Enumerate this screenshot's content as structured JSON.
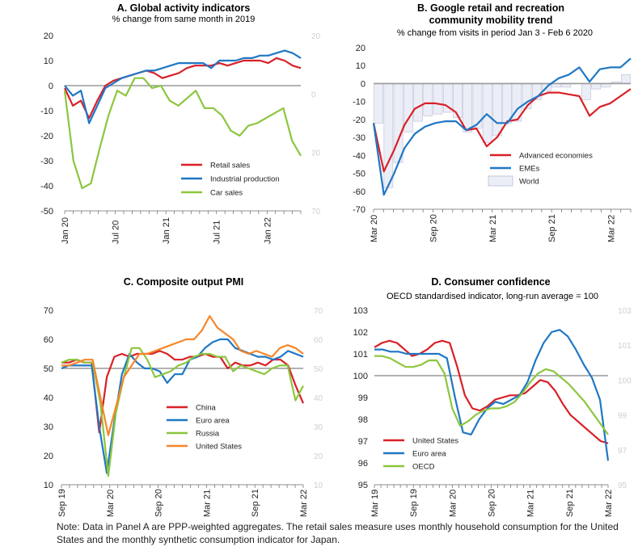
{
  "colors": {
    "red": "#d92027",
    "blue": "#1f77c4",
    "green": "#8cc63f",
    "orange": "#f6862a",
    "gray": "#999999",
    "bar": "#eceef7"
  },
  "note": "Note: Data in Panel A are PPP-weighted aggregates. The retail sales measure uses monthly household consumption for the United States and the monthly synthetic consumption indicator for Japan.",
  "chart_data": [
    {
      "id": "A",
      "type": "line",
      "title": "A. Global activity indicators",
      "subtitle": "% change from same month in 2019",
      "ylim": [
        -50,
        20
      ],
      "yticks": [
        20,
        10,
        0,
        -10,
        -20,
        -30,
        -40,
        -50
      ],
      "ghost_ticks": [
        "20",
        "0",
        "20",
        "70"
      ],
      "x_range": [
        0,
        28
      ],
      "date_labels": [
        {
          "label": "Jan 20",
          "x": 0
        },
        {
          "label": "Jul 20",
          "x": 6
        },
        {
          "label": "Jan 21",
          "x": 12
        },
        {
          "label": "Jul 21",
          "x": 18
        },
        {
          "label": "Jan 22",
          "x": 24
        }
      ],
      "zero_line": 0,
      "series": [
        {
          "name": "Retail sales",
          "color_key": "red",
          "values": [
            -1,
            -8,
            -6,
            -13,
            -6,
            0,
            2,
            3,
            4,
            5,
            6,
            5,
            3,
            4,
            5,
            7,
            8,
            8,
            8,
            9,
            8,
            9,
            10,
            10,
            10,
            9,
            11,
            10,
            8,
            7
          ]
        },
        {
          "name": "Industrial production",
          "color_key": "blue",
          "values": [
            0,
            -4,
            -2,
            -15,
            -8,
            -1,
            1,
            3,
            4,
            5,
            6,
            6,
            7,
            8,
            9,
            9,
            9,
            9,
            7,
            10,
            10,
            10,
            11,
            11,
            12,
            12,
            13,
            14,
            13,
            11
          ]
        },
        {
          "name": "Car sales",
          "color_key": "green",
          "values": [
            -2,
            -30,
            -41,
            -39,
            -25,
            -12,
            -2,
            -4,
            3,
            3,
            -1,
            0,
            -6,
            -8,
            -5,
            -2,
            -9,
            -9,
            -12,
            -18,
            -20,
            -16,
            -15,
            -13,
            -11,
            -9,
            -22,
            -28
          ]
        }
      ]
    },
    {
      "id": "B",
      "type": "line",
      "title": "B. Google retail and recreation community mobility trend",
      "title_lines": [
        "B. Google retail and recreation",
        "community mobility trend"
      ],
      "subtitle": "% change from visits in period Jan 3 - Feb 6 2020",
      "ylim": [
        -70,
        20
      ],
      "yticks": [
        20,
        10,
        0,
        -10,
        -20,
        -30,
        -40,
        -50,
        -60,
        -70
      ],
      "x_range": [
        0,
        26
      ],
      "date_labels": [
        {
          "label": "Mar 20",
          "x": 0
        },
        {
          "label": "Sep 20",
          "x": 6
        },
        {
          "label": "Mar 21",
          "x": 12
        },
        {
          "label": "Sep 21",
          "x": 18
        },
        {
          "label": "Mar 22",
          "x": 24
        }
      ],
      "zero_line": 0,
      "series": [
        {
          "name": "Advanced economies",
          "color_key": "red",
          "values": [
            -22,
            -49,
            -37,
            -23,
            -14,
            -11,
            -11,
            -12,
            -16,
            -26,
            -25,
            -35,
            -30,
            -21,
            -20,
            -12,
            -7,
            -5,
            -5,
            -6,
            -7,
            -18,
            -13,
            -11,
            -7,
            -3
          ]
        },
        {
          "name": "EMEs",
          "color_key": "blue",
          "values": [
            -22,
            -62,
            -50,
            -36,
            -28,
            -24,
            -22,
            -21,
            -21,
            -26,
            -23,
            -17,
            -22,
            -22,
            -14,
            -10,
            -7,
            -1,
            3,
            5,
            9,
            1,
            8,
            9,
            9,
            14
          ]
        },
        {
          "name": "World",
          "kind": "bar",
          "color_key": "bar",
          "values": [
            -22,
            -58,
            -44,
            -27,
            -21,
            -18,
            -17,
            -16,
            -19,
            -27,
            -25,
            -33,
            -29,
            -22,
            -21,
            -14,
            -9,
            -4,
            -2,
            -2,
            0,
            -9,
            -3,
            -2,
            1,
            5
          ]
        }
      ]
    },
    {
      "id": "C",
      "type": "line",
      "title": "C. Composite output PMI",
      "ylim": [
        10,
        70
      ],
      "yticks": [
        70,
        60,
        50,
        40,
        30,
        20,
        10
      ],
      "ghost_ticks": [
        "70",
        "60",
        "50",
        "40",
        "30",
        "20",
        "10"
      ],
      "x_range": [
        0,
        30
      ],
      "date_labels": [
        {
          "label": "Sep 19",
          "x": 0
        },
        {
          "label": "Mar 20",
          "x": 6
        },
        {
          "label": "Sep 20",
          "x": 12
        },
        {
          "label": "Mar 21",
          "x": 18
        },
        {
          "label": "Sep 21",
          "x": 24
        },
        {
          "label": "Mar 22",
          "x": 30
        }
      ],
      "zero_line": 50,
      "series": [
        {
          "name": "China",
          "color_key": "red",
          "values": [
            52,
            52,
            53,
            52,
            52,
            28,
            47,
            54,
            55,
            54,
            55,
            55,
            55,
            56,
            55,
            53,
            53,
            54,
            54,
            55,
            54,
            54,
            50,
            52,
            51,
            51,
            52,
            51,
            53,
            53,
            51,
            44,
            38
          ]
        },
        {
          "name": "Euro area",
          "color_key": "blue",
          "values": [
            50,
            51,
            51,
            51,
            51,
            30,
            14,
            32,
            48,
            55,
            52,
            50,
            50,
            49,
            45,
            48,
            48,
            53,
            54,
            57,
            59,
            60,
            60,
            57,
            56,
            55,
            54,
            54,
            53,
            54,
            56,
            55,
            54
          ]
        },
        {
          "name": "Russia",
          "color_key": "green",
          "values": [
            52,
            53,
            53,
            52,
            52,
            38,
            13,
            35,
            47,
            57,
            57,
            53,
            47,
            48,
            49,
            51,
            52,
            54,
            55,
            55,
            54,
            54,
            49,
            51,
            50,
            49,
            48,
            50,
            51,
            51,
            39,
            44
          ]
        },
        {
          "name": "United States",
          "color_key": "orange",
          "values": [
            51,
            51,
            52,
            53,
            53,
            40,
            27,
            37,
            47,
            51,
            55,
            55,
            56,
            57,
            58,
            59,
            60,
            60,
            63,
            68,
            64,
            62,
            60,
            56,
            55,
            56,
            55,
            54,
            57,
            58,
            57,
            55
          ]
        }
      ]
    },
    {
      "id": "D",
      "type": "line",
      "title": "D. Consumer confidence",
      "subtitle": "OECD standardised indicator, long-run average = 100",
      "ylim": [
        95,
        103
      ],
      "yticks": [
        103,
        102,
        101,
        100,
        99,
        98,
        97,
        96,
        95
      ],
      "ghost_ticks": [
        "103",
        "101",
        "100",
        "99",
        "97",
        "95"
      ],
      "x_range": [
        0,
        36
      ],
      "date_labels": [
        {
          "label": "Mar 19",
          "x": 0
        },
        {
          "label": "Sep 19",
          "x": 6
        },
        {
          "label": "Mar 20",
          "x": 12
        },
        {
          "label": "Sep 20",
          "x": 18
        },
        {
          "label": "Mar 21",
          "x": 24
        },
        {
          "label": "Sep 21",
          "x": 30
        },
        {
          "label": "Mar 22",
          "x": 36
        }
      ],
      "zero_line": 100,
      "series": [
        {
          "name": "United States",
          "color_key": "red",
          "values": [
            101.3,
            101.5,
            101.6,
            101.5,
            101.2,
            100.9,
            101.0,
            101.2,
            101.5,
            101.6,
            101.5,
            100.4,
            99.1,
            98.5,
            98.4,
            98.6,
            98.9,
            99.0,
            99.1,
            99.1,
            99.2,
            99.5,
            99.8,
            99.7,
            99.3,
            98.7,
            98.2,
            97.9,
            97.6,
            97.3,
            97.0,
            96.9
          ]
        },
        {
          "name": "Euro area",
          "color_key": "blue",
          "values": [
            101.2,
            101.2,
            101.1,
            101.1,
            101.0,
            101.0,
            101.0,
            101.0,
            101.0,
            100.8,
            99.0,
            97.4,
            97.3,
            98.0,
            98.5,
            98.8,
            98.7,
            98.9,
            99.1,
            99.7,
            100.7,
            101.5,
            102.0,
            102.1,
            101.8,
            101.2,
            100.5,
            99.9,
            98.9,
            96.1
          ]
        },
        {
          "name": "OECD",
          "color_key": "green",
          "values": [
            100.9,
            100.9,
            100.8,
            100.6,
            100.4,
            100.4,
            100.5,
            100.7,
            100.7,
            100.1,
            98.5,
            97.7,
            97.9,
            98.2,
            98.4,
            98.5,
            98.5,
            98.6,
            98.8,
            99.2,
            99.7,
            100.1,
            100.3,
            100.2,
            99.9,
            99.6,
            99.2,
            98.8,
            98.3,
            97.8,
            97.3
          ]
        }
      ]
    }
  ]
}
